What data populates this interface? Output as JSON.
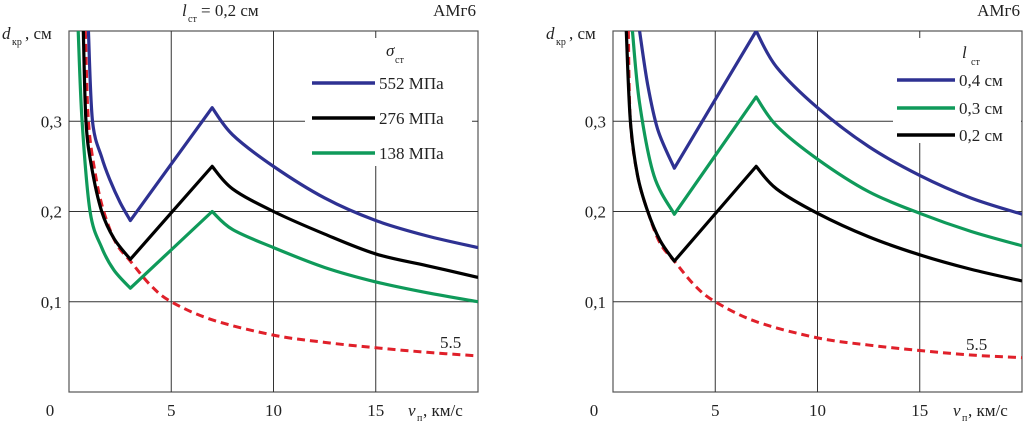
{
  "chart_data": [
    {
      "type": "line",
      "title": {
        "var": "l",
        "sub": "ст",
        "rest": " = 0,2 см"
      },
      "material": "АМг6",
      "ylabel": {
        "var": "d",
        "sub": "кр",
        "rest": ", см"
      },
      "xlabel": {
        "var": "v",
        "sub": "п",
        "rest": ", км/с"
      },
      "xlim": [
        0,
        20
      ],
      "ylim": [
        0,
        0.4
      ],
      "xticks": [
        {
          "v": 0,
          "label": "0"
        },
        {
          "v": 5,
          "label": "5"
        },
        {
          "v": 10,
          "label": "10"
        },
        {
          "v": 15,
          "label": "15"
        }
      ],
      "yticks": [
        {
          "v": 0.1,
          "label": "0,1"
        },
        {
          "v": 0.2,
          "label": "0,2"
        },
        {
          "v": 0.3,
          "label": "0,3"
        }
      ],
      "grid": true,
      "legend": {
        "title_var": "σ",
        "title_sub": "ст",
        "placement": "top-right"
      },
      "annotation": "5.5",
      "series": [
        {
          "name": "552 МПа",
          "color": "#2e3192",
          "dashed": false,
          "points": [
            [
              0.95,
              0.4
            ],
            [
              1.15,
              0.3
            ],
            [
              1.6,
              0.26
            ],
            [
              2,
              0.235
            ],
            [
              2.5,
              0.21
            ],
            [
              3,
              0.19
            ],
            [
              7,
              0.315
            ],
            [
              8,
              0.285
            ],
            [
              10,
              0.25
            ],
            [
              12.5,
              0.215
            ],
            [
              15,
              0.19
            ],
            [
              17.5,
              0.173
            ],
            [
              20,
              0.16
            ]
          ]
        },
        {
          "name": "276 МПа",
          "color": "#000000",
          "dashed": false,
          "points": [
            [
              0.7,
              0.4
            ],
            [
              0.83,
              0.3
            ],
            [
              1.1,
              0.25
            ],
            [
              1.6,
              0.2
            ],
            [
              2.2,
              0.17
            ],
            [
              3,
              0.147
            ],
            [
              7,
              0.25
            ],
            [
              8,
              0.225
            ],
            [
              10,
              0.2
            ],
            [
              12.5,
              0.175
            ],
            [
              15,
              0.153
            ],
            [
              17.5,
              0.14
            ],
            [
              20,
              0.127
            ]
          ]
        },
        {
          "name": "138 МПа",
          "color": "#0f9a5a",
          "dashed": false,
          "points": [
            [
              0.45,
              0.4
            ],
            [
              0.64,
              0.3
            ],
            [
              1.03,
              0.2
            ],
            [
              1.6,
              0.16
            ],
            [
              2.2,
              0.135
            ],
            [
              3,
              0.115
            ],
            [
              7,
              0.2
            ],
            [
              8,
              0.18
            ],
            [
              10,
              0.16
            ],
            [
              12.5,
              0.138
            ],
            [
              15,
              0.122
            ],
            [
              17.5,
              0.11
            ],
            [
              20,
              0.1
            ]
          ]
        },
        {
          "name": "",
          "color": "#e0202a",
          "dashed": true,
          "points": [
            [
              0.8,
              0.4
            ],
            [
              0.95,
              0.3
            ],
            [
              1.3,
              0.24
            ],
            [
              1.7,
              0.2
            ],
            [
              2.3,
              0.165
            ],
            [
              3,
              0.145
            ],
            [
              4,
              0.118
            ],
            [
              5,
              0.1
            ],
            [
              7,
              0.08
            ],
            [
              10,
              0.063
            ],
            [
              12.5,
              0.055
            ],
            [
              15,
              0.049
            ],
            [
              17.5,
              0.044
            ],
            [
              20,
              0.04
            ]
          ]
        }
      ]
    },
    {
      "type": "line",
      "material": "АМг6",
      "ylabel": {
        "var": "d",
        "sub": "кр",
        "rest": ", см"
      },
      "xlabel": {
        "var": "v",
        "sub": "п",
        "rest": ", км/с"
      },
      "xlim": [
        0,
        20
      ],
      "ylim": [
        0,
        0.4
      ],
      "xticks": [
        {
          "v": 0,
          "label": "0"
        },
        {
          "v": 5,
          "label": "5"
        },
        {
          "v": 10,
          "label": "10"
        },
        {
          "v": 15,
          "label": "15"
        }
      ],
      "yticks": [
        {
          "v": 0.1,
          "label": "0,1"
        },
        {
          "v": 0.2,
          "label": "0,2"
        },
        {
          "v": 0.3,
          "label": "0,3"
        }
      ],
      "grid": true,
      "legend": {
        "title_var": "l",
        "title_sub": "ст",
        "placement": "top-right"
      },
      "annotation": "5.5",
      "series": [
        {
          "name": "0,4 см",
          "color": "#2e3192",
          "dashed": false,
          "points": [
            [
              1.3,
              0.4
            ],
            [
              1.7,
              0.34
            ],
            [
              2.2,
              0.29
            ],
            [
              3,
              0.248
            ],
            [
              7,
              0.4
            ],
            [
              8,
              0.36
            ],
            [
              10,
              0.315
            ],
            [
              12.5,
              0.272
            ],
            [
              15,
              0.24
            ],
            [
              17.5,
              0.215
            ],
            [
              20,
              0.197
            ]
          ]
        },
        {
          "name": "0,3 см",
          "color": "#0f9a5a",
          "dashed": false,
          "points": [
            [
              0.95,
              0.4
            ],
            [
              1.3,
              0.32
            ],
            [
              2,
              0.24
            ],
            [
              3,
              0.197
            ],
            [
              7,
              0.327
            ],
            [
              8,
              0.295
            ],
            [
              10,
              0.258
            ],
            [
              12.5,
              0.222
            ],
            [
              15,
              0.198
            ],
            [
              17.5,
              0.178
            ],
            [
              20,
              0.162
            ]
          ]
        },
        {
          "name": "0,2 см",
          "color": "#000000",
          "dashed": false,
          "points": [
            [
              0.65,
              0.4
            ],
            [
              0.85,
              0.3
            ],
            [
              1.2,
              0.24
            ],
            [
              1.7,
              0.2
            ],
            [
              2.3,
              0.168
            ],
            [
              3,
              0.145
            ],
            [
              7,
              0.25
            ],
            [
              8,
              0.225
            ],
            [
              10,
              0.198
            ],
            [
              12.5,
              0.172
            ],
            [
              15,
              0.152
            ],
            [
              17.5,
              0.136
            ],
            [
              20,
              0.123
            ]
          ]
        },
        {
          "name": "",
          "color": "#e0202a",
          "dashed": true,
          "points": [
            [
              0.75,
              0.4
            ],
            [
              0.85,
              0.3
            ],
            [
              1.2,
              0.24
            ],
            [
              1.7,
              0.2
            ],
            [
              2.3,
              0.165
            ],
            [
              3,
              0.145
            ],
            [
              4,
              0.118
            ],
            [
              5,
              0.1
            ],
            [
              7,
              0.078
            ],
            [
              10,
              0.06
            ],
            [
              12.5,
              0.052
            ],
            [
              15,
              0.046
            ],
            [
              17.5,
              0.041
            ],
            [
              20,
              0.038
            ]
          ]
        }
      ]
    }
  ]
}
